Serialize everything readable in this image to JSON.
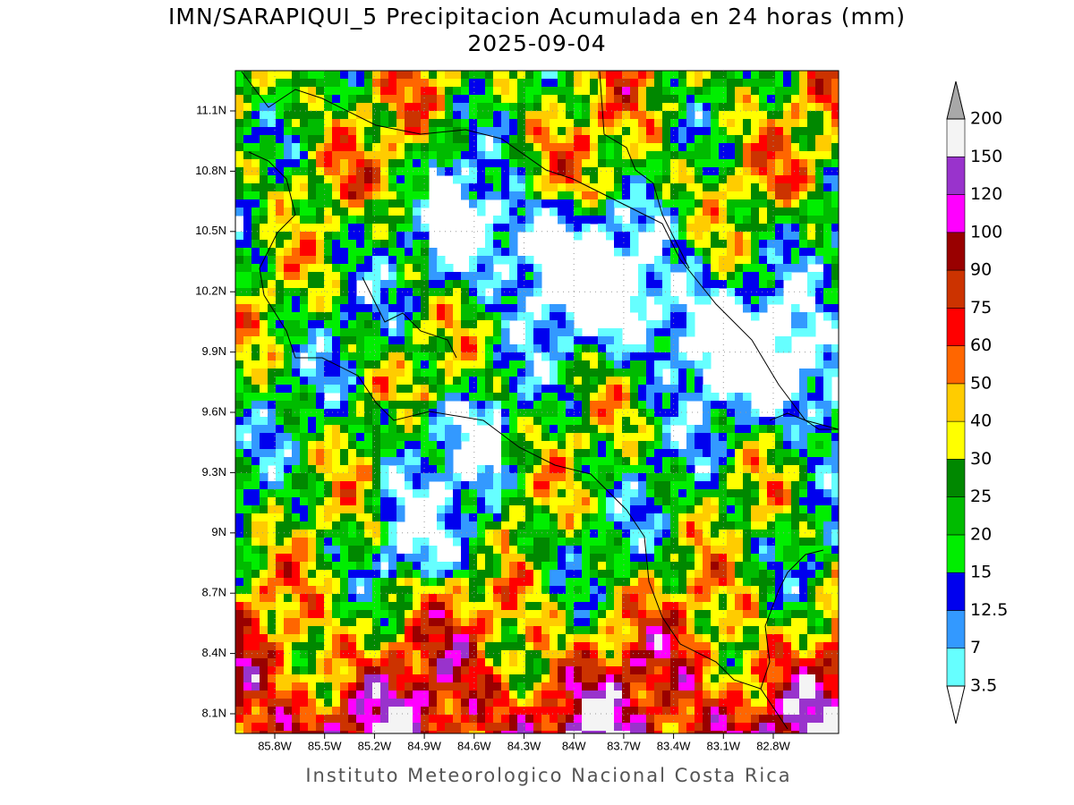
{
  "title": "IMN/SARAPIQUI_5 Precipitacion Acumulada en 24 horas (mm)",
  "date": "2025-09-04",
  "footer": "Instituto Meteorologico Nacional Costa Rica",
  "map": {
    "lat_labels": [
      "11.1N",
      "10.8N",
      "10.5N",
      "10.2N",
      "9.9N",
      "9.6N",
      "9.3N",
      "9N",
      "8.7N",
      "8.4N",
      "8.1N"
    ],
    "lon_labels": [
      "85.8W",
      "85.5W",
      "85.2W",
      "84.9W",
      "84.6W",
      "84.3W",
      "84W",
      "83.7W",
      "83.4W",
      "83.1W",
      "82.8W"
    ]
  },
  "colorbar": {
    "levels": [
      3.5,
      7,
      12.5,
      15,
      20,
      25,
      30,
      40,
      50,
      60,
      75,
      90,
      100,
      120,
      150,
      200
    ],
    "under_color": "#ffffff",
    "colors": [
      "#66ffff",
      "#3399ff",
      "#0000ee",
      "#00ee00",
      "#00bb00",
      "#008800",
      "#ffff00",
      "#ffcc00",
      "#ff6600",
      "#ff0000",
      "#cc3300",
      "#990000",
      "#ff00ff",
      "#9933cc",
      "#f4f4f4"
    ],
    "over_color": "#a8a8a8"
  }
}
